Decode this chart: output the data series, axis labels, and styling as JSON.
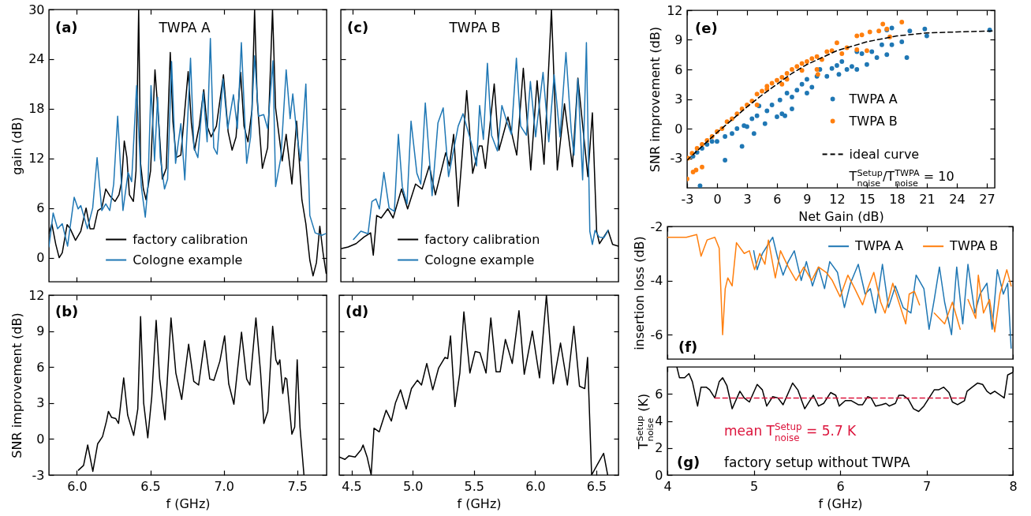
{
  "chart_data": [
    {
      "type": "line",
      "annotations": [
        "(a)",
        "TWPA A"
      ],
      "ylabel": "gain (dB)",
      "xlim": [
        5.81,
        7.7
      ],
      "ylim": [
        -2.9,
        30
      ],
      "xticks": [
        6,
        6.5,
        7,
        7.5
      ],
      "yticks": [
        0,
        6,
        12,
        18,
        24,
        30
      ],
      "tick_labels": "y",
      "legend": "bottom",
      "series": [
        {
          "name": "factory calibration",
          "color": "#000000",
          "x": [
            5.81,
            5.83,
            5.857,
            5.88,
            5.901,
            5.934,
            5.955,
            5.991,
            6.027,
            6.063,
            6.09,
            6.116,
            6.143,
            6.17,
            6.197,
            6.224,
            6.26,
            6.287,
            6.305,
            6.323,
            6.341,
            6.358,
            6.385,
            6.403,
            6.421,
            6.434,
            6.453,
            6.471,
            6.502,
            6.532,
            6.556,
            6.582,
            6.609,
            6.636,
            6.654,
            6.676,
            6.708,
            6.758,
            6.78,
            6.801,
            6.833,
            6.864,
            6.887,
            6.914,
            6.95,
            6.998,
            7.03,
            7.057,
            7.084,
            7.115,
            7.138,
            7.165,
            7.192,
            7.21,
            7.228,
            7.263,
            7.299,
            7.332,
            7.353,
            7.398,
            7.425,
            7.464,
            7.496,
            7.532,
            7.559,
            7.586,
            7.608,
            7.631,
            7.654,
            7.676,
            7.697
          ],
          "values": [
            2.9,
            4.1,
            1.6,
            0.0,
            0.6,
            4.0,
            3.5,
            2.1,
            3.2,
            6.0,
            3.5,
            3.5,
            5.7,
            6.0,
            8.3,
            7.5,
            6.8,
            7.6,
            9.2,
            14.1,
            12.1,
            7.6,
            6.8,
            10.5,
            30,
            11.4,
            8.3,
            7.0,
            10.5,
            22.7,
            16.8,
            9.5,
            10.8,
            24.8,
            16.5,
            12.1,
            12.4,
            22.5,
            16.2,
            13.0,
            15.9,
            20.3,
            15.9,
            14.6,
            15.9,
            22.1,
            15.2,
            13.0,
            14.6,
            22.4,
            15.9,
            14.0,
            17.8,
            30,
            19.0,
            10.8,
            13.3,
            30,
            18.1,
            11.7,
            14.9,
            8.9,
            16.5,
            7.0,
            4.1,
            -0.3,
            -2.2,
            -0.6,
            3.8,
            0.6,
            -1.9
          ]
        },
        {
          "name": "Cologne example",
          "color": "#1f77b4",
          "x": [
            5.81,
            5.839,
            5.869,
            5.901,
            5.937,
            5.982,
            6.009,
            6.027,
            6.072,
            6.108,
            6.138,
            6.17,
            6.197,
            6.224,
            6.251,
            6.278,
            6.314,
            6.349,
            6.373,
            6.407,
            6.439,
            6.466,
            6.484,
            6.505,
            6.529,
            6.55,
            6.568,
            6.597,
            6.618,
            6.645,
            6.672,
            6.708,
            6.735,
            6.774,
            6.797,
            6.824,
            6.86,
            6.887,
            6.909,
            6.932,
            6.955,
            6.995,
            7.027,
            7.066,
            7.093,
            7.12,
            7.156,
            7.183,
            7.21,
            7.237,
            7.272,
            7.299,
            7.335,
            7.353,
            7.389,
            7.425,
            7.452,
            7.47,
            7.496,
            7.523,
            7.559,
            7.586,
            7.622,
            7.667,
            7.694
          ],
          "values": [
            1.3,
            5.4,
            3.5,
            4.1,
            1.4,
            7.3,
            5.9,
            6.3,
            3.5,
            6.0,
            12.1,
            5.7,
            6.5,
            5.7,
            8.9,
            17.1,
            5.7,
            10.3,
            9.2,
            20.8,
            8.6,
            4.9,
            8.6,
            20.8,
            11.7,
            19.4,
            12.1,
            8.3,
            9.5,
            23.7,
            11.4,
            16.2,
            9.4,
            24.1,
            13.3,
            12.1,
            20.0,
            14.0,
            26.5,
            13.3,
            12.5,
            21.6,
            15.6,
            19.7,
            15.6,
            26.0,
            11.4,
            14.6,
            24.4,
            17.1,
            17.3,
            15.6,
            23.8,
            8.6,
            12.1,
            22.7,
            16.8,
            19.8,
            15.2,
            11.7,
            21.0,
            5.1,
            3.0,
            2.7,
            2.9
          ]
        }
      ]
    },
    {
      "type": "line",
      "annotations": [
        "(b)"
      ],
      "xlabel": "f (GHz)",
      "ylabel": "SNR improvement (dB)",
      "xlim": [
        5.81,
        7.7
      ],
      "ylim": [
        -3,
        12
      ],
      "xticks": [
        {
          "value": 6,
          "label": "6.0"
        },
        6.5,
        {
          "value": 7,
          "label": "7.0"
        },
        7.5
      ],
      "yticks": [
        -3,
        0,
        3,
        6,
        9,
        12
      ],
      "series": [
        {
          "color": "#000000",
          "x": [
            6.011,
            6.046,
            6.074,
            6.109,
            6.142,
            6.175,
            6.202,
            6.215,
            6.237,
            6.265,
            6.284,
            6.319,
            6.346,
            6.387,
            6.415,
            6.434,
            6.455,
            6.483,
            6.51,
            6.54,
            6.564,
            6.6,
            6.641,
            6.674,
            6.714,
            6.761,
            6.796,
            6.829,
            6.87,
            6.905,
            6.933,
            6.974,
            7.006,
            7.034,
            7.069,
            7.121,
            7.156,
            7.178,
            7.219,
            7.251,
            7.273,
            7.3,
            7.333,
            7.355,
            7.369,
            7.382,
            7.402,
            7.418,
            7.429,
            7.464,
            7.483,
            7.5,
            7.519,
            7.546
          ],
          "values": [
            -2.6,
            -2.2,
            -0.5,
            -2.7,
            -0.4,
            0.2,
            1.5,
            2.3,
            1.8,
            1.7,
            1.3,
            5.1,
            2.0,
            0.3,
            2.5,
            10.2,
            3.0,
            0.1,
            3.5,
            9.9,
            5.0,
            1.6,
            10.1,
            5.5,
            3.3,
            7.9,
            4.8,
            4.5,
            8.2,
            5.0,
            4.9,
            6.5,
            8.6,
            4.6,
            2.9,
            8.9,
            5.0,
            4.5,
            10.1,
            5.5,
            1.3,
            2.3,
            9.4,
            6.6,
            6.2,
            6.6,
            3.8,
            5.1,
            5.0,
            0.4,
            1.0,
            6.6,
            1.0,
            -3.0
          ]
        }
      ]
    },
    {
      "type": "line",
      "annotations": [
        "(c)",
        "TWPA B"
      ],
      "xlim": [
        4.4,
        6.68
      ],
      "ylim": [
        -2.9,
        30
      ],
      "xticks": [
        4.5,
        5,
        5.5,
        6,
        6.5
      ],
      "yticks": [
        0,
        6,
        12,
        18,
        24,
        30
      ],
      "tick_labels": false,
      "legend": "bottom",
      "series": [
        {
          "name": "factory calibration",
          "color": "#000000",
          "x": [
            4.407,
            4.461,
            4.526,
            4.591,
            4.645,
            4.667,
            4.695,
            4.732,
            4.786,
            4.83,
            4.899,
            4.949,
            5.014,
            5.068,
            5.127,
            5.177,
            5.262,
            5.292,
            5.327,
            5.364,
            5.397,
            5.434,
            5.483,
            5.538,
            5.56,
            5.588,
            5.66,
            5.699,
            5.773,
            5.845,
            5.899,
            5.96,
            6.012,
            6.069,
            6.13,
            6.178,
            6.237,
            6.302,
            6.347,
            6.429,
            6.466,
            6.501,
            6.524,
            6.595,
            6.632,
            6.679
          ],
          "values": [
            1.1,
            1.3,
            1.7,
            2.5,
            3.0,
            0.3,
            5.1,
            4.8,
            5.9,
            4.8,
            8.3,
            5.9,
            8.9,
            8.3,
            11.1,
            7.6,
            12.7,
            11.1,
            14.9,
            6.2,
            12.4,
            20.2,
            10.2,
            13.5,
            13.5,
            10.8,
            21.0,
            13.0,
            17.0,
            12.4,
            22.9,
            10.6,
            21.4,
            11.3,
            30,
            10.6,
            18.6,
            11.0,
            21.7,
            9.8,
            17.5,
            3.2,
            1.7,
            3.3,
            1.6,
            1.4
          ]
        },
        {
          "name": "Cologne example",
          "color": "#1f77b4",
          "x": [
            4.504,
            4.565,
            4.624,
            4.656,
            4.689,
            4.717,
            4.754,
            4.797,
            4.84,
            4.873,
            4.905,
            4.944,
            4.977,
            5.025,
            5.057,
            5.094,
            5.15,
            5.198,
            5.241,
            5.285,
            5.364,
            5.404,
            5.483,
            5.515,
            5.54,
            5.571,
            5.604,
            5.638,
            5.686,
            5.723,
            5.762,
            5.801,
            5.842,
            5.877,
            5.924,
            5.957,
            6.0,
            6.061,
            6.108,
            6.152,
            6.2,
            6.249,
            6.293,
            6.315,
            6.347,
            6.386,
            6.417,
            6.445,
            6.466,
            6.488,
            6.521,
            6.56,
            6.597
          ],
          "values": [
            2.2,
            3.2,
            2.9,
            6.8,
            7.1,
            5.9,
            10.3,
            6.0,
            5.6,
            14.9,
            8.6,
            6.5,
            16.5,
            10.2,
            8.9,
            18.7,
            7.5,
            16.3,
            18.1,
            9.8,
            15.9,
            17.4,
            13.3,
            11.1,
            18.4,
            14.3,
            23.5,
            14.8,
            12.9,
            18.4,
            16.5,
            14.9,
            24.1,
            15.9,
            14.8,
            21.3,
            14.6,
            22.4,
            14.0,
            22.1,
            14.6,
            24.8,
            15.2,
            12.4,
            21.6,
            9.4,
            26.0,
            3.2,
            1.6,
            3.3,
            2.5,
            2.4,
            3.3
          ]
        }
      ]
    },
    {
      "type": "line",
      "annotations": [
        "(d)"
      ],
      "xlabel": "f (GHz)",
      "xlim": [
        4.4,
        6.68
      ],
      "ylim": [
        -3,
        12
      ],
      "xticks": [
        4.5,
        {
          "value": 5,
          "label": "5.0"
        },
        5.5,
        {
          "value": 6,
          "label": "6.0"
        },
        6.5
      ],
      "yticks": [
        -3,
        0,
        3,
        6,
        9,
        12
      ],
      "tick_labels": "x",
      "series": [
        {
          "color": "#000000",
          "x": [
            4.4,
            4.447,
            4.48,
            4.53,
            4.579,
            4.595,
            4.628,
            4.661,
            4.684,
            4.727,
            4.783,
            4.826,
            4.859,
            4.901,
            4.947,
            4.99,
            5.039,
            5.072,
            5.115,
            5.164,
            5.211,
            5.263,
            5.286,
            5.309,
            5.345,
            5.385,
            5.418,
            5.467,
            5.51,
            5.549,
            5.599,
            5.638,
            5.681,
            5.714,
            5.757,
            5.813,
            5.868,
            5.911,
            5.977,
            6.036,
            6.092,
            6.148,
            6.207,
            6.263,
            6.316,
            6.362,
            6.405,
            6.428,
            6.461,
            6.52,
            6.559,
            6.592
          ],
          "values": [
            -1.5,
            -1.7,
            -1.4,
            -1.5,
            -0.9,
            -0.5,
            -1.5,
            -3.0,
            0.9,
            0.6,
            2.4,
            1.5,
            3.0,
            4.1,
            2.5,
            4.2,
            4.9,
            4.5,
            6.3,
            4.1,
            5.9,
            6.8,
            6.7,
            8.6,
            2.7,
            5.5,
            10.6,
            5.5,
            7.3,
            7.2,
            5.5,
            10.1,
            5.6,
            5.6,
            8.3,
            6.3,
            10.7,
            5.4,
            9.0,
            5.1,
            12.0,
            4.6,
            8.0,
            4.5,
            9.4,
            4.4,
            4.2,
            6.8,
            -3.0,
            -1.9,
            -1.2,
            -3.0
          ]
        }
      ]
    },
    {
      "type": "scatter",
      "annotations": [
        "(e)"
      ],
      "xlabel": "Net Gain (dB)",
      "ylabel": "SNR improvement (dB)",
      "xlim": [
        -3,
        27.8
      ],
      "ylim": [
        -6,
        12
      ],
      "xticks": [
        -3,
        0,
        3,
        6,
        9,
        12,
        15,
        18,
        21,
        24,
        27
      ],
      "yticks": [
        -3,
        0,
        3,
        6,
        9,
        12
      ],
      "legend": "right",
      "marker": "circle",
      "series": [
        {
          "name": "TWPA A",
          "color": "#1f77b4",
          "x": [
            -2.4,
            -2.0,
            -1.5,
            -1.0,
            -0.5,
            0.0,
            0.8,
            -1.7,
            0.8,
            1.5,
            2.0,
            2.5,
            2.7,
            3.0,
            3.5,
            3.7,
            4.0,
            4.2,
            4.8,
            5.0,
            5.5,
            6.0,
            6.3,
            6.5,
            6.8,
            7.0,
            7.5,
            7.5,
            8.0,
            8.5,
            9.0,
            9.0,
            9.5,
            10.0,
            10.3,
            11.0,
            11.5,
            12.0,
            12.2,
            12.5,
            13.0,
            13.5,
            14.0,
            14.0,
            14.5,
            15.0,
            15.5,
            16.0,
            16.5,
            17.0,
            17.0,
            17.5,
            17.5,
            18.5,
            19.0,
            19.3,
            20.8,
            21.0,
            27.3
          ],
          "values": [
            -2.8,
            -2.4,
            -2.0,
            -1.6,
            -1.3,
            -1.3,
            -3.2,
            -5.8,
            -0.8,
            -0.5,
            0.0,
            -1.8,
            0.3,
            0.2,
            1.0,
            -0.5,
            1.3,
            2.3,
            0.5,
            1.8,
            2.4,
            1.2,
            2.9,
            1.5,
            1.3,
            3.6,
            2.0,
            3.2,
            3.9,
            4.5,
            5.0,
            3.6,
            4.2,
            5.3,
            6.0,
            5.3,
            6.1,
            6.4,
            5.5,
            6.8,
            6.0,
            6.3,
            7.8,
            6.0,
            7.6,
            6.5,
            7.8,
            7.2,
            8.5,
            7.5,
            10.0,
            10.2,
            8.5,
            8.8,
            7.2,
            9.9,
            10.1,
            9.4,
            10.0
          ]
        },
        {
          "name": "TWPA B",
          "color": "#ff7f0e",
          "x": [
            -3,
            -2.4,
            -2.1,
            -1.5,
            -2.9,
            -2.5,
            -2.0,
            -1.5,
            -1.0,
            -0.5,
            0.0,
            0.5,
            1.0,
            1.5,
            2.0,
            2.5,
            3.0,
            3.5,
            4.0,
            4.5,
            5.0,
            5.5,
            6.0,
            6.5,
            7.0,
            7.5,
            8.0,
            8.5,
            9.0,
            9.5,
            10.0,
            10.5,
            11.0,
            11.5,
            12.0,
            12.5,
            13.0,
            14.0,
            14.5,
            14.0,
            15.0,
            15.3,
            16.2,
            16.6,
            17.0,
            17.3,
            18.5,
            10.1,
            6.5,
            7.0,
            5.0,
            4.0,
            8.5,
            10.0
          ],
          "values": [
            -5.1,
            -4.4,
            -4.2,
            -3.9,
            -3.0,
            -2.5,
            -2.0,
            -1.6,
            -1.2,
            -0.8,
            -0.3,
            0.0,
            0.7,
            1.0,
            1.5,
            2.0,
            2.4,
            2.8,
            3.5,
            3.8,
            4.3,
            4.6,
            4.9,
            5.2,
            5.6,
            6.0,
            6.3,
            6.6,
            6.8,
            7.1,
            7.3,
            7.0,
            7.8,
            7.9,
            8.7,
            7.6,
            8.2,
            9.4,
            9.5,
            8.0,
            7.9,
            9.8,
            9.9,
            10.6,
            10.1,
            9.3,
            10.8,
            5.5,
            4.5,
            5.0,
            4.0,
            2.4,
            5.9,
            6.0
          ]
        },
        {
          "name": "ideal curve\nT$^{Setup}$$_{noise}$/T$^{TWPA}$$_{noise}$ = 10",
          "type": "line",
          "line_style": "dashed",
          "marker": "none",
          "color": "#000000",
          "x": [
            -3,
            -1.5,
            0,
            1.5,
            3,
            4.5,
            6,
            7.5,
            9,
            10.5,
            12,
            15,
            18,
            21,
            24,
            27.8
          ],
          "values": [
            -3.2,
            -1.8,
            -0.4,
            0.9,
            2.2,
            3.4,
            4.5,
            5.6,
            6.5,
            7.2,
            7.9,
            8.8,
            9.4,
            9.7,
            9.8,
            9.9
          ]
        }
      ]
    },
    {
      "type": "line",
      "annotations": [
        "(f)"
      ],
      "ylabel": "insertion loss (dB)",
      "xlim": [
        4,
        8
      ],
      "ylim": [
        -6.9,
        -2
      ],
      "xticks": [
        4,
        5,
        6,
        7,
        8
      ],
      "yticks": [
        -2,
        -4,
        -6
      ],
      "tick_labels": "y",
      "legend": "top right",
      "series": [
        {
          "name": "TWPA A",
          "color": "#1f77b4",
          "x": [
            5.0,
            5.04,
            5.1,
            5.16,
            5.22,
            5.28,
            5.34,
            5.4,
            5.47,
            5.55,
            5.61,
            5.68,
            5.75,
            5.82,
            5.88,
            5.97,
            6.05,
            6.12,
            6.21,
            6.29,
            6.35,
            6.41,
            6.49,
            6.56,
            6.64,
            6.73,
            6.82,
            6.88,
            6.97,
            7.03,
            7.09,
            7.15,
            7.21,
            7.29,
            7.35,
            7.42,
            7.48,
            7.56,
            7.62,
            7.7,
            7.76,
            7.82,
            7.89,
            7.94,
            7.98
          ],
          "values": [
            -2.9,
            -3.6,
            -3.0,
            -2.7,
            -2.4,
            -3.2,
            -3.8,
            -3.3,
            -2.9,
            -4.0,
            -3.3,
            -4.2,
            -3.5,
            -4.3,
            -3.3,
            -3.7,
            -5.0,
            -4.1,
            -3.4,
            -4.5,
            -4.3,
            -5.2,
            -3.4,
            -5.0,
            -4.2,
            -5.0,
            -5.2,
            -3.8,
            -4.3,
            -5.8,
            -4.7,
            -3.5,
            -4.8,
            -6.0,
            -3.5,
            -5.6,
            -3.4,
            -5.2,
            -4.5,
            -4.1,
            -5.8,
            -3.6,
            -4.5,
            -4.1,
            -6.5
          ]
        },
        {
          "name": "TWPA B",
          "color": "#ff7f0e",
          "x": [
            4.0,
            4.1,
            4.22,
            4.34,
            4.39,
            4.46,
            4.55,
            4.6,
            4.64,
            4.67,
            4.7,
            4.75,
            4.8,
            4.89,
            4.95,
            5.01,
            5.07,
            5.13,
            5.17,
            5.25,
            5.31,
            5.4,
            5.49,
            5.58,
            5.67,
            5.75,
            5.84,
            5.91,
            6.0,
            6.09,
            6.17,
            6.26,
            6.32,
            6.39,
            6.47,
            6.52,
            6.61,
            6.68,
            6.76,
            6.8,
            6.86,
            6.92,
            6.98,
            7.09,
            7.21,
            7.3,
            7.39,
            7.44,
            7.48,
            7.57,
            7.6,
            7.66,
            7.73,
            7.79,
            7.85,
            7.93,
            7.98
          ],
          "values": [
            -2.4,
            -2.4,
            -2.4,
            -2.3,
            -3.1,
            -2.5,
            -2.4,
            -2.8,
            -6.0,
            -4.3,
            -3.9,
            -4.2,
            -2.6,
            -3.0,
            -2.9,
            -3.6,
            -3.0,
            -3.4,
            -2.5,
            -3.9,
            -2.9,
            -3.5,
            -4.0,
            -3.5,
            -4.0,
            -3.5,
            -3.7,
            -4.0,
            -4.6,
            -3.8,
            -4.3,
            -4.9,
            -4.3,
            -3.7,
            -4.8,
            -5.2,
            -4.1,
            -4.8,
            -5.6,
            -4.5,
            -4.4,
            -4.9,
            null,
            -5.2,
            -5.6,
            -4.8,
            -5.8,
            null,
            -4.7,
            -5.4,
            -3.8,
            -5.2,
            -4.7,
            -5.9,
            -4.5,
            -3.6,
            -4.2
          ]
        }
      ]
    },
    {
      "type": "line",
      "annotations": [
        "(g)",
        "factory setup without TWPA",
        "mean T$^{Setup}$$_{noise}$ = 5.7 K"
      ],
      "xlabel": "f (GHz)",
      "ylabel": "T$^{Setup}$$_{noise}$ (K)",
      "xlim": [
        4,
        8
      ],
      "ylim": [
        0,
        8
      ],
      "xticks": [
        4,
        5,
        6,
        7,
        8
      ],
      "yticks": [
        0,
        2,
        4,
        6
      ],
      "series": [
        {
          "color": "#000000",
          "x": [
            4.11,
            4.14,
            4.2,
            4.25,
            4.29,
            4.35,
            4.39,
            4.45,
            4.49,
            4.55,
            4.6,
            4.64,
            4.69,
            4.75,
            4.84,
            4.89,
            4.95,
            5.04,
            5.1,
            5.15,
            5.22,
            5.28,
            5.34,
            5.45,
            5.51,
            5.59,
            5.69,
            5.75,
            5.81,
            5.89,
            5.95,
            5.99,
            6.06,
            6.13,
            6.21,
            6.26,
            6.32,
            6.36,
            6.41,
            6.48,
            6.53,
            6.57,
            6.64,
            6.68,
            6.73,
            6.79,
            6.85,
            6.91,
            6.97,
            7.03,
            7.09,
            7.14,
            7.2,
            7.26,
            7.3,
            7.36,
            7.44,
            7.47,
            7.53,
            7.59,
            7.65,
            7.7,
            7.74,
            7.79,
            7.9,
            7.94,
            8.0
          ],
          "values": [
            8.0,
            7.2,
            7.2,
            7.5,
            6.9,
            5.1,
            6.5,
            6.5,
            6.3,
            5.7,
            6.9,
            7.2,
            6.6,
            4.9,
            6.2,
            5.7,
            5.4,
            6.7,
            6.3,
            5.1,
            5.8,
            5.7,
            5.2,
            6.8,
            6.3,
            4.9,
            5.9,
            5.1,
            5.3,
            6.1,
            5.9,
            5.1,
            5.5,
            5.5,
            5.2,
            5.2,
            5.8,
            5.7,
            5.1,
            5.2,
            5.3,
            5.1,
            5.3,
            5.9,
            5.9,
            5.6,
            4.9,
            4.7,
            5.1,
            5.7,
            6.3,
            6.3,
            6.5,
            6.1,
            5.4,
            5.2,
            5.5,
            6.2,
            6.5,
            6.8,
            6.7,
            6.2,
            6.0,
            6.2,
            5.7,
            7.4,
            7.6
          ]
        },
        {
          "color": "#dc143c",
          "line_style": "dashed",
          "x": [
            4.55,
            7.44
          ],
          "values": [
            5.7,
            5.7
          ]
        }
      ]
    }
  ]
}
